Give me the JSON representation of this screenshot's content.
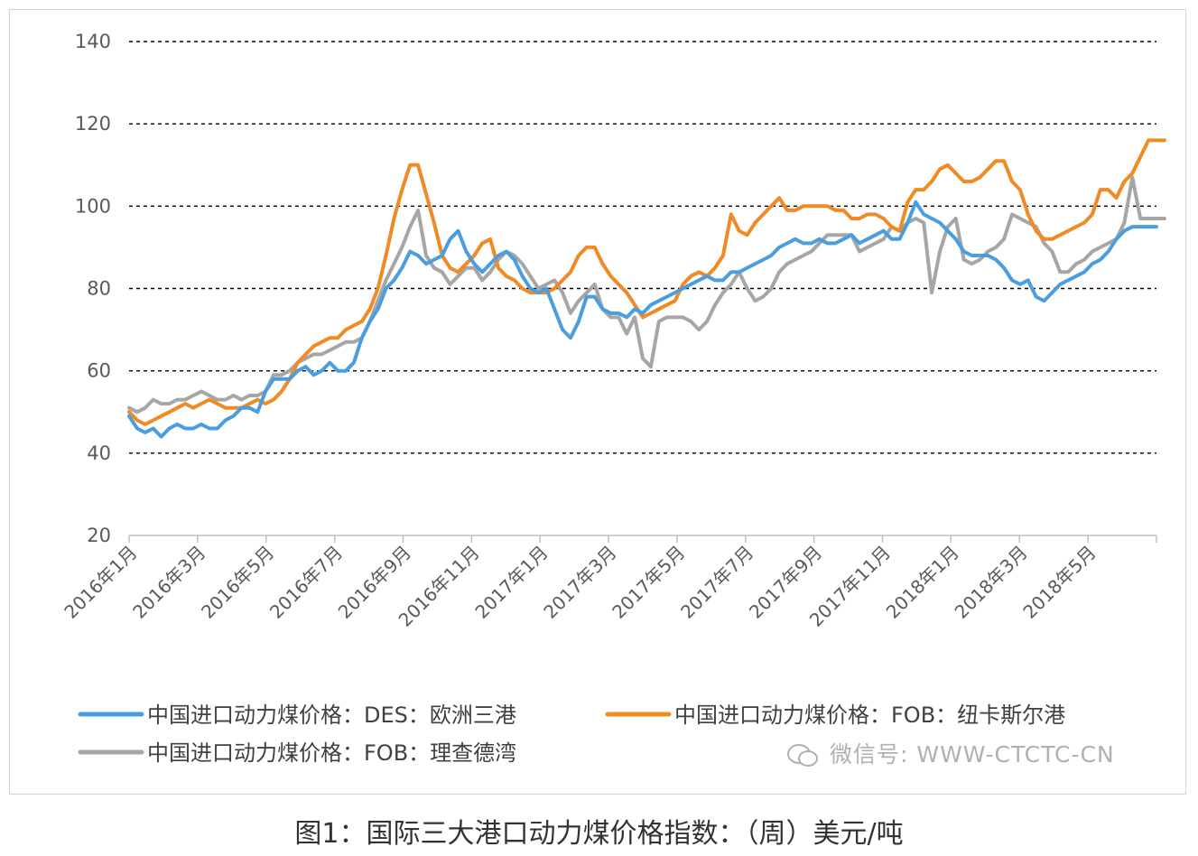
{
  "caption": "图1：国际三大港口动力煤价格指数：（周）美元/吨",
  "watermark": "微信号: WWW-CTCTC-CN",
  "colors": {
    "des_europe": "#4a9ee0",
    "fob_newcastle": "#f08a24",
    "fob_richards_bay": "#a6a6a6",
    "gridline": "#000000",
    "axis": "#bfbfbf"
  },
  "chart_data": {
    "type": "line",
    "title": "",
    "xlabel": "",
    "ylabel": "",
    "ylim": [
      20,
      140
    ],
    "yticks": [
      20,
      40,
      60,
      80,
      100,
      120,
      140
    ],
    "grid": true,
    "grid_style": "dashed",
    "legend_position": "bottom",
    "x_tick_labels": [
      "2016年1月",
      "2016年3月",
      "2016年5月",
      "2016年7月",
      "2016年9月",
      "2016年11月",
      "2017年1月",
      "2017年3月",
      "2017年5月",
      "2017年7月",
      "2017年9月",
      "2017年11月",
      "2018年1月",
      "2018年3月",
      "2018年5月"
    ],
    "series": [
      {
        "name": "中国进口动力煤价格：DES：欧洲三港",
        "color_key": "des_europe",
        "values": [
          49,
          46,
          45,
          46,
          44,
          46,
          47,
          46,
          46,
          47,
          46,
          46,
          48,
          49,
          51,
          51,
          50,
          55,
          58,
          58,
          58,
          60,
          61,
          59,
          60,
          62,
          60,
          60,
          62,
          68,
          72,
          75,
          80,
          82,
          85,
          89,
          88,
          86,
          87,
          88,
          92,
          94,
          89,
          86,
          84,
          86,
          88,
          89,
          87,
          83,
          80,
          79,
          80,
          75,
          70,
          68,
          72,
          78,
          78,
          75,
          74,
          74,
          73,
          75,
          74,
          76,
          77,
          78,
          79,
          80,
          81,
          82,
          83,
          82,
          82,
          84,
          84,
          85,
          86,
          87,
          88,
          90,
          91,
          92,
          91,
          91,
          92,
          91,
          91,
          92,
          93,
          91,
          92,
          93,
          94,
          92,
          92,
          96,
          101,
          98,
          97,
          96,
          94,
          92,
          89,
          88,
          88,
          88,
          87,
          85,
          82,
          81,
          82,
          78,
          77,
          79,
          81,
          82,
          83,
          84,
          86,
          87,
          89,
          92,
          94,
          95,
          95,
          95,
          95
        ]
      },
      {
        "name": "中国进口动力煤价格：FOB：纽卡斯尔港",
        "color_key": "fob_newcastle",
        "values": [
          50,
          48,
          47,
          48,
          49,
          50,
          51,
          52,
          51,
          52,
          53,
          52,
          51,
          51,
          51,
          52,
          53,
          52,
          53,
          55,
          58,
          62,
          64,
          66,
          67,
          68,
          68,
          70,
          71,
          72,
          75,
          80,
          88,
          97,
          104,
          110,
          110,
          103,
          96,
          88,
          85,
          84,
          86,
          88,
          91,
          92,
          85,
          83,
          82,
          80,
          79,
          79,
          79,
          80,
          82,
          84,
          88,
          90,
          90,
          86,
          83,
          81,
          79,
          76,
          73,
          74,
          75,
          76,
          77,
          81,
          83,
          84,
          83,
          85,
          88,
          98,
          94,
          93,
          96,
          98,
          100,
          102,
          99,
          99,
          100,
          100,
          100,
          100,
          99,
          99,
          97,
          97,
          98,
          98,
          97,
          95,
          94,
          101,
          104,
          104,
          106,
          109,
          110,
          108,
          106,
          106,
          107,
          109,
          111,
          111,
          106,
          104,
          98,
          94,
          92,
          92,
          93,
          94,
          95,
          96,
          98,
          104,
          104,
          102,
          106,
          108,
          112,
          116,
          116,
          116
        ]
      },
      {
        "name": "中国进口动力煤价格：FOB：理查德湾",
        "color_key": "fob_richards_bay",
        "values": [
          51,
          50,
          51,
          53,
          52,
          52,
          53,
          53,
          54,
          55,
          54,
          53,
          53,
          54,
          53,
          54,
          54,
          55,
          59,
          59,
          60,
          62,
          63,
          64,
          64,
          65,
          66,
          67,
          67,
          68,
          72,
          77,
          82,
          86,
          90,
          95,
          99,
          88,
          85,
          84,
          81,
          83,
          85,
          85,
          82,
          84,
          87,
          89,
          88,
          86,
          83,
          80,
          81,
          82,
          79,
          74,
          77,
          79,
          81,
          75,
          73,
          73,
          69,
          73,
          63,
          61,
          72,
          73,
          73,
          73,
          72,
          70,
          72,
          76,
          79,
          81,
          84,
          80,
          77,
          78,
          80,
          84,
          86,
          87,
          88,
          89,
          91,
          93,
          93,
          93,
          93,
          89,
          90,
          91,
          92,
          95,
          94,
          96,
          97,
          96,
          79,
          89,
          95,
          97,
          87,
          86,
          87,
          89,
          90,
          92,
          98,
          97,
          96,
          95,
          91,
          89,
          84,
          84,
          86,
          87,
          89,
          90,
          91,
          92,
          96,
          107,
          97,
          97,
          97,
          97
        ]
      }
    ]
  },
  "legend": [
    {
      "label": "中国进口动力煤价格：DES：欧洲三港",
      "color_key": "des_europe"
    },
    {
      "label": "中国进口动力煤价格：FOB：纽卡斯尔港",
      "color_key": "fob_newcastle"
    },
    {
      "label": "中国进口动力煤价格：FOB：理查德湾",
      "color_key": "fob_richards_bay"
    }
  ]
}
